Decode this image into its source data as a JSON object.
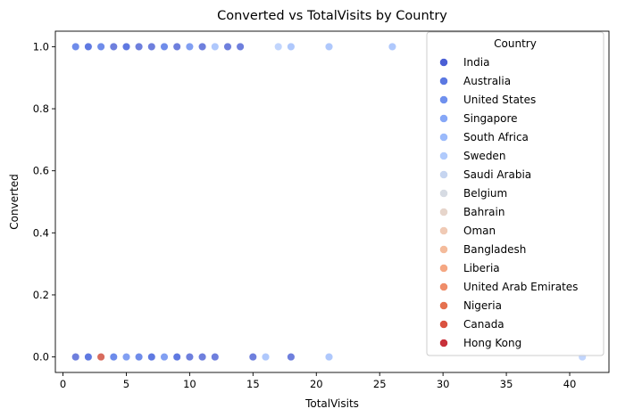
{
  "chart_data": {
    "type": "scatter",
    "title": "Converted vs TotalVisits by Country",
    "xlabel": "TotalVisits",
    "ylabel": "Converted",
    "xlim": [
      -0.6,
      43.1
    ],
    "ylim": [
      -0.05,
      1.05
    ],
    "xticks": [
      0,
      5,
      10,
      15,
      20,
      25,
      30,
      35,
      40
    ],
    "yticks": [
      0.0,
      0.2,
      0.4,
      0.6,
      0.8,
      1.0
    ],
    "xtick_labels": [
      "0",
      "5",
      "10",
      "15",
      "20",
      "25",
      "30",
      "35",
      "40"
    ],
    "ytick_labels": [
      "0.0",
      "0.2",
      "0.4",
      "0.6",
      "0.8",
      "1.0"
    ],
    "grid": false,
    "legend": {
      "title": "Country",
      "placement": "top-right",
      "entries": [
        {
          "name": "India",
          "color": "#4a5fd5"
        },
        {
          "name": "Australia",
          "color": "#5b78e2"
        },
        {
          "name": "United States",
          "color": "#6f90ee"
        },
        {
          "name": "Singapore",
          "color": "#86a7f7"
        },
        {
          "name": "South Africa",
          "color": "#9bbafb"
        },
        {
          "name": "Sweden",
          "color": "#b1cbfc"
        },
        {
          "name": "Saudi Arabia",
          "color": "#c6d5f0"
        },
        {
          "name": "Belgium",
          "color": "#d6dbe3"
        },
        {
          "name": "Bahrain",
          "color": "#e6d5cb"
        },
        {
          "name": "Oman",
          "color": "#f0cab5"
        },
        {
          "name": "Bangladesh",
          "color": "#f4bb9b"
        },
        {
          "name": "Liberia",
          "color": "#f5a783"
        },
        {
          "name": "United Arab Emirates",
          "color": "#ef8d6a"
        },
        {
          "name": "Nigeria",
          "color": "#e5714f"
        },
        {
          "name": "Canada",
          "color": "#da5240"
        },
        {
          "name": "Hong Kong",
          "color": "#c8313a"
        }
      ]
    },
    "series": [
      {
        "name": "India",
        "color": "#4a5fd5",
        "points": [
          [
            1,
            1
          ],
          [
            2,
            1
          ],
          [
            3,
            1
          ],
          [
            4,
            1
          ],
          [
            5,
            1
          ],
          [
            6,
            1
          ],
          [
            7,
            1
          ],
          [
            8,
            1
          ],
          [
            9,
            1
          ],
          [
            10,
            1
          ],
          [
            11,
            1
          ],
          [
            13,
            1
          ],
          [
            14,
            1
          ],
          [
            1,
            0
          ],
          [
            2,
            0
          ],
          [
            3,
            0
          ],
          [
            4,
            0
          ],
          [
            5,
            0
          ],
          [
            6,
            0
          ],
          [
            7,
            0
          ],
          [
            8,
            0
          ],
          [
            9,
            0
          ],
          [
            10,
            0
          ],
          [
            11,
            0
          ],
          [
            12,
            0
          ],
          [
            15,
            0
          ],
          [
            18,
            0
          ]
        ]
      },
      {
        "name": "Australia",
        "color": "#5b78e2",
        "points": [
          [
            2,
            1
          ],
          [
            5,
            1
          ],
          [
            2,
            0
          ],
          [
            4,
            0
          ],
          [
            7,
            0
          ],
          [
            9,
            0
          ]
        ]
      },
      {
        "name": "United States",
        "color": "#6f90ee",
        "points": [
          [
            1,
            1
          ],
          [
            3,
            1
          ],
          [
            8,
            1
          ],
          [
            4,
            0
          ],
          [
            6,
            0
          ]
        ]
      },
      {
        "name": "Singapore",
        "color": "#86a7f7",
        "points": [
          [
            10,
            1
          ],
          [
            3,
            0
          ],
          [
            5,
            0
          ],
          [
            8,
            0
          ]
        ]
      },
      {
        "name": "South Africa",
        "color": "#9bbafb",
        "points": [
          [
            12,
            1
          ],
          [
            18,
            1
          ],
          [
            21,
            1
          ],
          [
            26,
            1
          ],
          [
            16,
            0
          ],
          [
            21,
            0
          ]
        ]
      },
      {
        "name": "Sweden",
        "color": "#b1cbfc",
        "points": [
          [
            17,
            1
          ],
          [
            41,
            0
          ]
        ]
      },
      {
        "name": "Bahrain",
        "color": "#e6d5cb",
        "points": [
          [
            3,
            0
          ]
        ]
      },
      {
        "name": "Canada",
        "color": "#da5240",
        "points": [
          [
            3,
            0
          ]
        ]
      }
    ]
  }
}
